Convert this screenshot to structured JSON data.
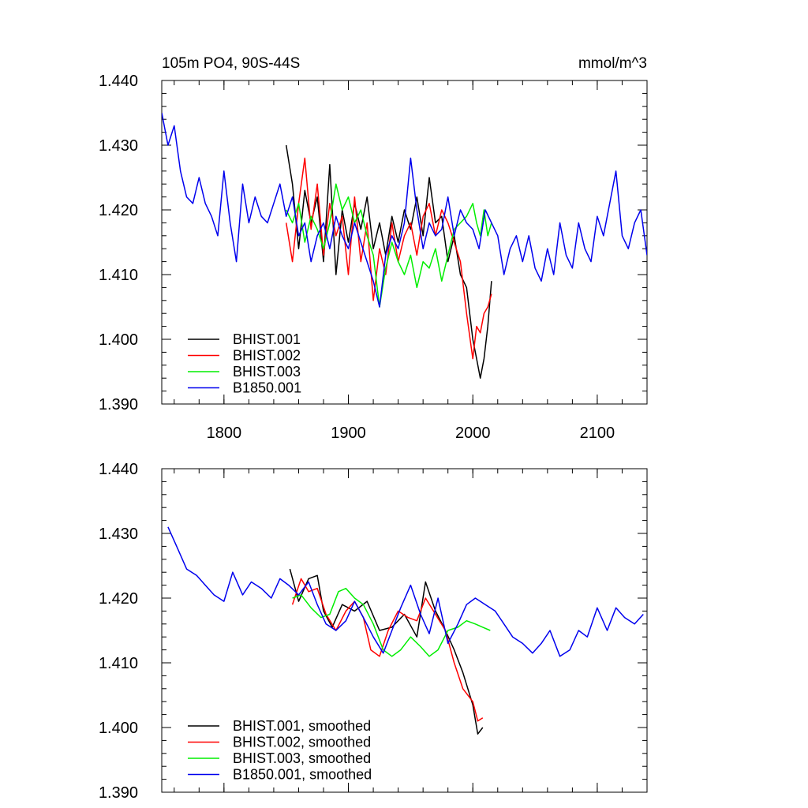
{
  "chart_data": [
    {
      "type": "line",
      "title_left": "105m PO4, 90S-44S",
      "title_right": "mmol/m^3",
      "xlabel": "",
      "ylabel": "",
      "xlim": [
        1750,
        2140
      ],
      "ylim": [
        1.39,
        1.44
      ],
      "x_ticks": [
        1800,
        1900,
        2000,
        2100
      ],
      "x_tick_labels": [
        "1800",
        "1900",
        "2000",
        "2100"
      ],
      "y_ticks": [
        1.39,
        1.4,
        1.41,
        1.42,
        1.43,
        1.44
      ],
      "y_tick_labels": [
        "1.390",
        "1.400",
        "1.410",
        "1.420",
        "1.430",
        "1.440"
      ],
      "show_x_tick_labels": true,
      "legend_position": "bottom-left",
      "series": [
        {
          "name": "BHIST.001",
          "color": "#000000",
          "x": [
            1850,
            1855,
            1860,
            1865,
            1870,
            1875,
            1880,
            1885,
            1890,
            1895,
            1900,
            1905,
            1910,
            1915,
            1920,
            1925,
            1930,
            1935,
            1940,
            1945,
            1950,
            1955,
            1960,
            1965,
            1970,
            1975,
            1980,
            1985,
            1990,
            1995,
            2000,
            2003,
            2006,
            2009,
            2012,
            2015
          ],
          "values": [
            1.43,
            1.424,
            1.414,
            1.423,
            1.418,
            1.422,
            1.412,
            1.427,
            1.41,
            1.42,
            1.415,
            1.421,
            1.417,
            1.422,
            1.414,
            1.418,
            1.413,
            1.419,
            1.415,
            1.42,
            1.417,
            1.422,
            1.416,
            1.425,
            1.418,
            1.419,
            1.412,
            1.416,
            1.41,
            1.408,
            1.4,
            1.397,
            1.394,
            1.397,
            1.402,
            1.409
          ]
        },
        {
          "name": "BHIST.002",
          "color": "#ff0000",
          "x": [
            1850,
            1855,
            1860,
            1865,
            1870,
            1875,
            1880,
            1885,
            1890,
            1895,
            1900,
            1905,
            1910,
            1915,
            1920,
            1925,
            1930,
            1935,
            1940,
            1945,
            1950,
            1955,
            1960,
            1965,
            1970,
            1975,
            1980,
            1985,
            1990,
            1995,
            2000,
            2003,
            2006,
            2009,
            2012,
            2015
          ],
          "values": [
            1.418,
            1.412,
            1.421,
            1.428,
            1.417,
            1.424,
            1.413,
            1.421,
            1.416,
            1.419,
            1.41,
            1.422,
            1.412,
            1.418,
            1.406,
            1.414,
            1.41,
            1.418,
            1.412,
            1.416,
            1.418,
            1.413,
            1.419,
            1.421,
            1.416,
            1.42,
            1.418,
            1.415,
            1.412,
            1.404,
            1.397,
            1.402,
            1.401,
            1.404,
            1.405,
            1.407
          ]
        },
        {
          "name": "BHIST.003",
          "color": "#00ee00",
          "x": [
            1850,
            1855,
            1860,
            1865,
            1870,
            1875,
            1880,
            1885,
            1890,
            1895,
            1900,
            1905,
            1910,
            1915,
            1920,
            1925,
            1930,
            1935,
            1940,
            1945,
            1950,
            1955,
            1960,
            1965,
            1970,
            1975,
            1980,
            1985,
            1990,
            1995,
            2000,
            2003,
            2006,
            2009,
            2012,
            2015
          ],
          "values": [
            1.42,
            1.418,
            1.421,
            1.415,
            1.419,
            1.417,
            1.414,
            1.418,
            1.424,
            1.42,
            1.422,
            1.418,
            1.42,
            1.416,
            1.413,
            1.405,
            1.411,
            1.415,
            1.412,
            1.41,
            1.413,
            1.408,
            1.412,
            1.411,
            1.414,
            1.409,
            1.413,
            1.417,
            1.418,
            1.419,
            1.421,
            1.418,
            1.416,
            1.42,
            1.416,
            1.418
          ]
        },
        {
          "name": "B1850.001",
          "color": "#0000ee",
          "x": [
            1750,
            1755,
            1760,
            1765,
            1770,
            1775,
            1780,
            1785,
            1790,
            1795,
            1800,
            1805,
            1810,
            1815,
            1820,
            1825,
            1830,
            1835,
            1840,
            1845,
            1850,
            1855,
            1860,
            1865,
            1870,
            1875,
            1880,
            1885,
            1890,
            1895,
            1900,
            1905,
            1910,
            1915,
            1920,
            1925,
            1930,
            1935,
            1940,
            1945,
            1950,
            1955,
            1960,
            1965,
            1970,
            1975,
            1980,
            1985,
            1990,
            1995,
            2000,
            2005,
            2010,
            2015,
            2020,
            2025,
            2030,
            2035,
            2040,
            2045,
            2050,
            2055,
            2060,
            2065,
            2070,
            2075,
            2080,
            2085,
            2090,
            2095,
            2100,
            2105,
            2110,
            2115,
            2120,
            2125,
            2130,
            2135,
            2140
          ],
          "values": [
            1.435,
            1.43,
            1.433,
            1.426,
            1.422,
            1.421,
            1.425,
            1.421,
            1.419,
            1.416,
            1.426,
            1.418,
            1.412,
            1.424,
            1.418,
            1.422,
            1.419,
            1.418,
            1.421,
            1.424,
            1.419,
            1.422,
            1.416,
            1.418,
            1.412,
            1.416,
            1.418,
            1.414,
            1.419,
            1.416,
            1.414,
            1.418,
            1.415,
            1.412,
            1.409,
            1.405,
            1.413,
            1.416,
            1.414,
            1.418,
            1.428,
            1.42,
            1.414,
            1.418,
            1.416,
            1.417,
            1.422,
            1.416,
            1.42,
            1.418,
            1.417,
            1.414,
            1.42,
            1.418,
            1.416,
            1.41,
            1.414,
            1.416,
            1.412,
            1.416,
            1.411,
            1.409,
            1.414,
            1.41,
            1.418,
            1.413,
            1.411,
            1.418,
            1.414,
            1.412,
            1.419,
            1.416,
            1.421,
            1.426,
            1.416,
            1.414,
            1.418,
            1.42,
            1.413
          ]
        }
      ]
    },
    {
      "type": "line",
      "title_left": "",
      "title_right": "",
      "xlabel": "",
      "ylabel": "",
      "xlim": [
        1750,
        2140
      ],
      "ylim": [
        1.39,
        1.44
      ],
      "x_ticks": [
        1800,
        1900,
        2000,
        2100
      ],
      "x_tick_labels": [],
      "y_ticks": [
        1.39,
        1.4,
        1.41,
        1.42,
        1.43,
        1.44
      ],
      "y_tick_labels": [
        "1.390",
        "1.400",
        "1.410",
        "1.420",
        "1.430",
        "1.440"
      ],
      "show_x_tick_labels": false,
      "legend_position": "bottom-left",
      "series": [
        {
          "name": "BHIST.001, smoothed",
          "color": "#000000",
          "x": [
            1853,
            1860,
            1868,
            1875,
            1880,
            1887,
            1895,
            1905,
            1915,
            1925,
            1935,
            1945,
            1955,
            1962,
            1970,
            1978,
            1985,
            1992,
            2000,
            2004,
            2008
          ],
          "values": [
            1.4245,
            1.4195,
            1.423,
            1.4235,
            1.418,
            1.4155,
            1.419,
            1.418,
            1.4195,
            1.415,
            1.4155,
            1.4175,
            1.414,
            1.4225,
            1.418,
            1.415,
            1.412,
            1.4085,
            1.4035,
            1.399,
            1.4
          ]
        },
        {
          "name": "BHIST.002, smoothed",
          "color": "#ff0000",
          "x": [
            1855,
            1862,
            1868,
            1875,
            1882,
            1890,
            1898,
            1905,
            1912,
            1918,
            1925,
            1932,
            1940,
            1948,
            1955,
            1962,
            1970,
            1978,
            1985,
            1992,
            2000,
            2004,
            2008
          ],
          "values": [
            1.419,
            1.423,
            1.421,
            1.4215,
            1.4175,
            1.415,
            1.418,
            1.4195,
            1.417,
            1.412,
            1.411,
            1.415,
            1.418,
            1.417,
            1.4165,
            1.42,
            1.4175,
            1.415,
            1.41,
            1.406,
            1.404,
            1.401,
            1.4015
          ]
        },
        {
          "name": "BHIST.003, smoothed",
          "color": "#00ee00",
          "x": [
            1855,
            1862,
            1870,
            1878,
            1885,
            1892,
            1898,
            1905,
            1912,
            1920,
            1928,
            1935,
            1942,
            1950,
            1958,
            1965,
            1972,
            1980,
            1988,
            1995,
            2002,
            2008,
            2014
          ],
          "values": [
            1.42,
            1.4205,
            1.4185,
            1.417,
            1.4175,
            1.421,
            1.4215,
            1.42,
            1.419,
            1.416,
            1.412,
            1.411,
            1.412,
            1.414,
            1.4125,
            1.411,
            1.412,
            1.415,
            1.4155,
            1.4165,
            1.416,
            1.4155,
            1.415
          ]
        },
        {
          "name": "B1850.001, smoothed",
          "color": "#0000ee",
          "x": [
            1755,
            1762,
            1770,
            1778,
            1785,
            1792,
            1800,
            1807,
            1815,
            1822,
            1830,
            1838,
            1845,
            1852,
            1860,
            1868,
            1875,
            1882,
            1890,
            1898,
            1905,
            1912,
            1920,
            1928,
            1935,
            1942,
            1950,
            1958,
            1965,
            1972,
            1980,
            1988,
            1995,
            2002,
            2010,
            2018,
            2025,
            2032,
            2040,
            2048,
            2055,
            2062,
            2070,
            2078,
            2085,
            2092,
            2100,
            2108,
            2115,
            2122,
            2130,
            2137
          ],
          "values": [
            1.431,
            1.428,
            1.4245,
            1.4235,
            1.422,
            1.4205,
            1.4195,
            1.424,
            1.4205,
            1.4225,
            1.4215,
            1.42,
            1.423,
            1.422,
            1.4205,
            1.4225,
            1.419,
            1.416,
            1.415,
            1.4165,
            1.4195,
            1.417,
            1.414,
            1.4115,
            1.415,
            1.4185,
            1.422,
            1.4175,
            1.4145,
            1.42,
            1.413,
            1.416,
            1.419,
            1.42,
            1.419,
            1.418,
            1.416,
            1.414,
            1.413,
            1.4115,
            1.413,
            1.415,
            1.411,
            1.412,
            1.415,
            1.414,
            1.4185,
            1.415,
            1.4185,
            1.417,
            1.416,
            1.4175
          ]
        }
      ]
    }
  ]
}
